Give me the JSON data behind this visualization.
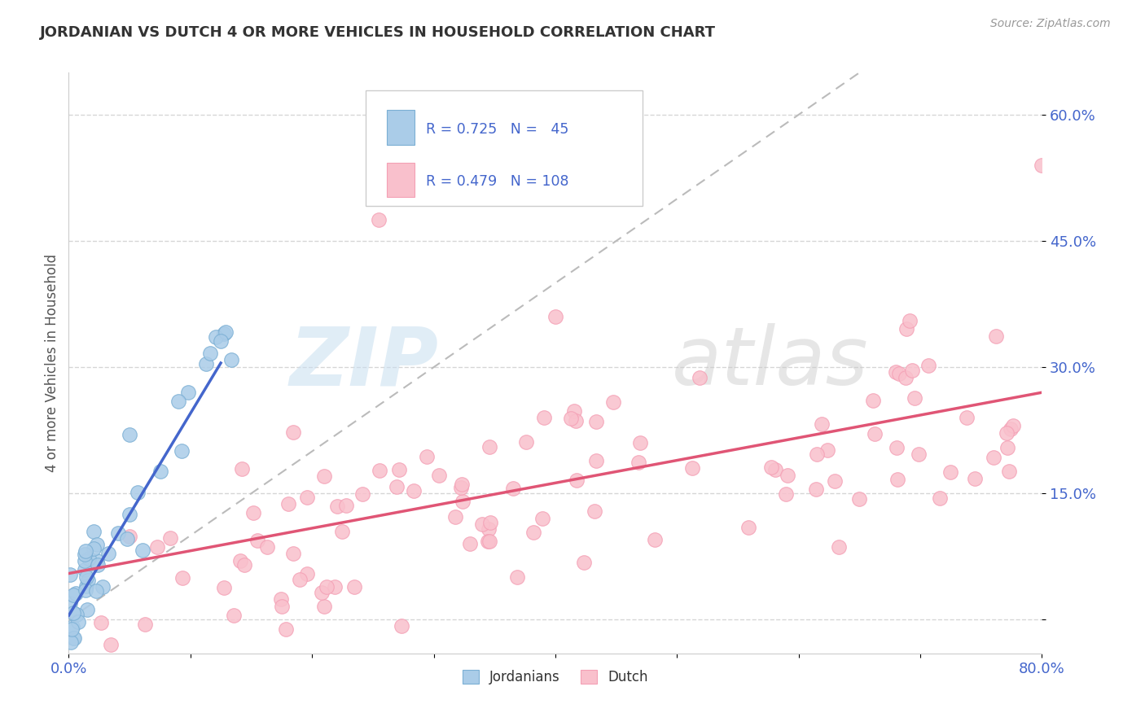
{
  "title": "JORDANIAN VS DUTCH 4 OR MORE VEHICLES IN HOUSEHOLD CORRELATION CHART",
  "source_text": "Source: ZipAtlas.com",
  "ylabel": "4 or more Vehicles in Household",
  "xlim": [
    0.0,
    0.8
  ],
  "ylim": [
    -0.04,
    0.65
  ],
  "ytick_positions": [
    0.0,
    0.15,
    0.3,
    0.45,
    0.6
  ],
  "yticklabels": [
    "",
    "15.0%",
    "30.0%",
    "45.0%",
    "60.0%"
  ],
  "xtick_positions": [
    0.0,
    0.1,
    0.2,
    0.3,
    0.4,
    0.5,
    0.6,
    0.7,
    0.8
  ],
  "xticklabels": [
    "0.0%",
    "",
    "",
    "",
    "",
    "",
    "",
    "",
    "80.0%"
  ],
  "grid_color": "#cccccc",
  "background_color": "#ffffff",
  "watermark_text": "ZIP",
  "watermark_text2": "atlas",
  "jordan_color": "#aacce8",
  "jordan_edge_color": "#7bafd4",
  "dutch_color": "#f9c0cc",
  "dutch_edge_color": "#f4a0b5",
  "jordan_line_color": "#4466cc",
  "dutch_line_color": "#e05575",
  "ref_line_color": "#bbbbbb",
  "tick_color": "#4466cc",
  "title_color": "#333333",
  "source_color": "#999999",
  "ylabel_color": "#555555",
  "legend_box_color": "#eeeeee",
  "legend_text_color": "#4466cc",
  "jordan_line_x": [
    0.0,
    0.125
  ],
  "jordan_line_y": [
    0.005,
    0.305
  ],
  "dutch_line_x": [
    0.0,
    0.8
  ],
  "dutch_line_y": [
    0.055,
    0.27
  ],
  "ref_line_x": [
    0.0,
    0.65
  ],
  "ref_line_y": [
    0.0,
    0.65
  ]
}
